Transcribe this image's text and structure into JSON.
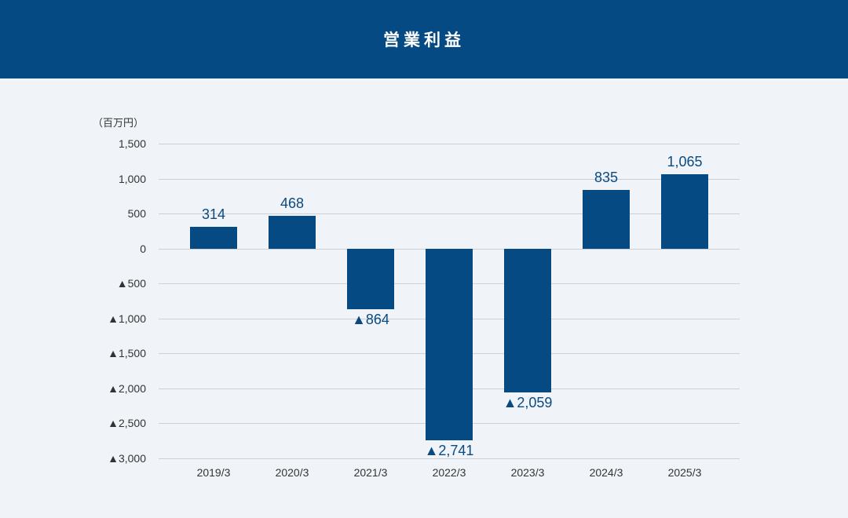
{
  "header": {
    "title": "営業利益"
  },
  "chart_data": {
    "type": "bar",
    "title": "営業利益",
    "ylabel": "（百万円）",
    "xlabel": "",
    "categories": [
      "2019/3",
      "2020/3",
      "2021/3",
      "2022/3",
      "2023/3",
      "2024/3",
      "2025/3"
    ],
    "values": [
      314,
      468,
      -864,
      -2741,
      -2059,
      835,
      1065
    ],
    "value_labels": [
      "314",
      "468",
      "▲864",
      "▲2,741",
      "▲2,059",
      "835",
      "1,065"
    ],
    "ylim": [
      -3000,
      1500
    ],
    "yticks": [
      1500,
      1000,
      500,
      0,
      -500,
      -1000,
      -1500,
      -2000,
      -2500,
      -3000
    ],
    "ytick_labels": [
      "1,500",
      "1,000",
      "500",
      "0",
      "▲500",
      "▲1,000",
      "▲1,500",
      "▲2,000",
      "▲2,500",
      "▲3,000"
    ],
    "grid": true,
    "legend": null,
    "colors": {
      "bar": "#054a82",
      "header": "#054a82",
      "background": "#f0f4f8",
      "grid": "#c9d0d8"
    }
  }
}
